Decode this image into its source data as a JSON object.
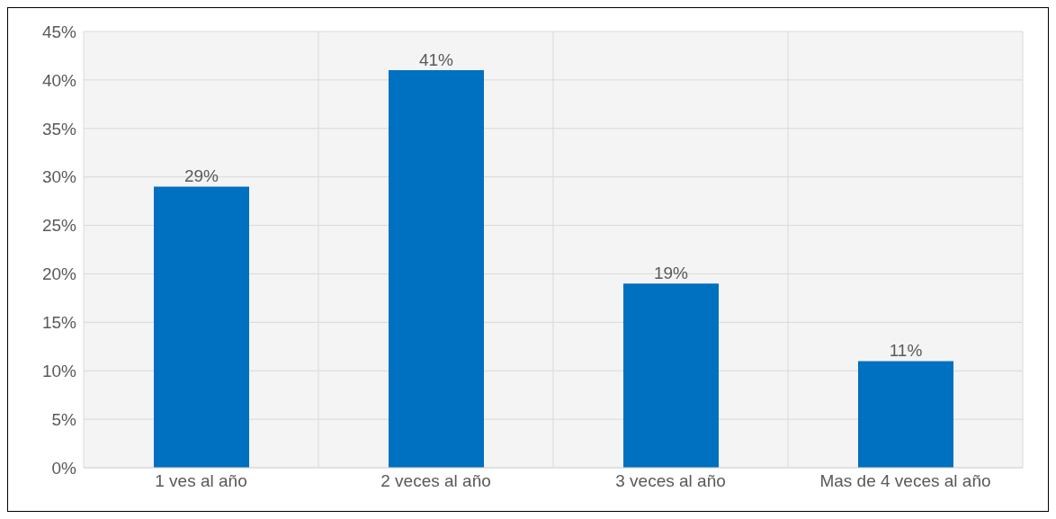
{
  "chart_data": {
    "type": "bar",
    "categories": [
      "1 ves al año",
      "2 veces al año",
      "3 veces al año",
      "Mas de 4 veces al año"
    ],
    "values": [
      29,
      41,
      19,
      11
    ],
    "color": "#0070c0",
    "value_labels": [
      "29%",
      "41%",
      "19%",
      "11%"
    ],
    "ylim": [
      0,
      45
    ],
    "yticks": [
      {
        "value": 0,
        "label": "0%"
      },
      {
        "value": 5,
        "label": "5%"
      },
      {
        "value": 10,
        "label": "10%"
      },
      {
        "value": 15,
        "label": "15%"
      },
      {
        "value": 20,
        "label": "20%"
      },
      {
        "value": 25,
        "label": "25%"
      },
      {
        "value": 30,
        "label": "30%"
      },
      {
        "value": 35,
        "label": "35%"
      },
      {
        "value": 40,
        "label": "40%"
      },
      {
        "value": 45,
        "label": "45%"
      }
    ],
    "grid": true,
    "legend": false
  }
}
